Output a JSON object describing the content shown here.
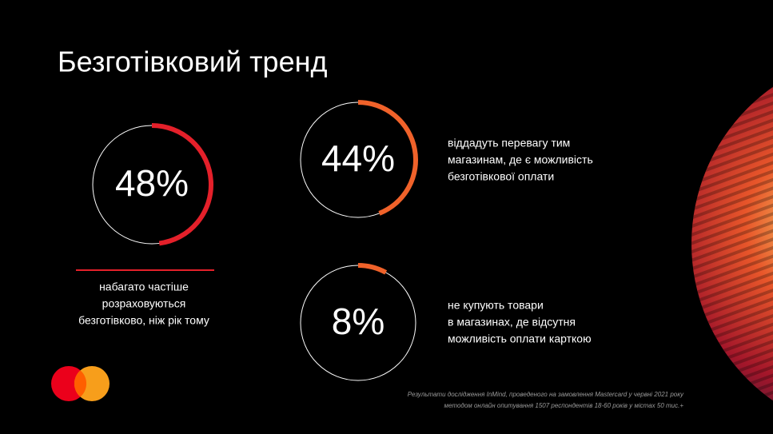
{
  "title": "Безготівковий тренд",
  "stats": [
    {
      "value": 48,
      "label": "48%",
      "color": "#e4202a",
      "description": [
        "набагато частіше",
        "розраховуються",
        "безготівково, ніж рік тому"
      ]
    },
    {
      "value": 44,
      "label": "44%",
      "color": "#f0622a",
      "description": [
        "віддадуть перевагу тим",
        "магазинам, де є можливість",
        "безготівкової оплати"
      ]
    },
    {
      "value": 8,
      "label": "8%",
      "color": "#f0622a",
      "description": [
        "не купують товари",
        "в магазинах, де відсутня",
        "можливість оплати карткою"
      ]
    }
  ],
  "footnote": [
    "Результати дослідження InMind, проведеного на замовлення Mastercard у червні 2021 року",
    "методом онлайн опитування 1507 респондентів 18-60 років у містах 50 тис.+"
  ]
}
